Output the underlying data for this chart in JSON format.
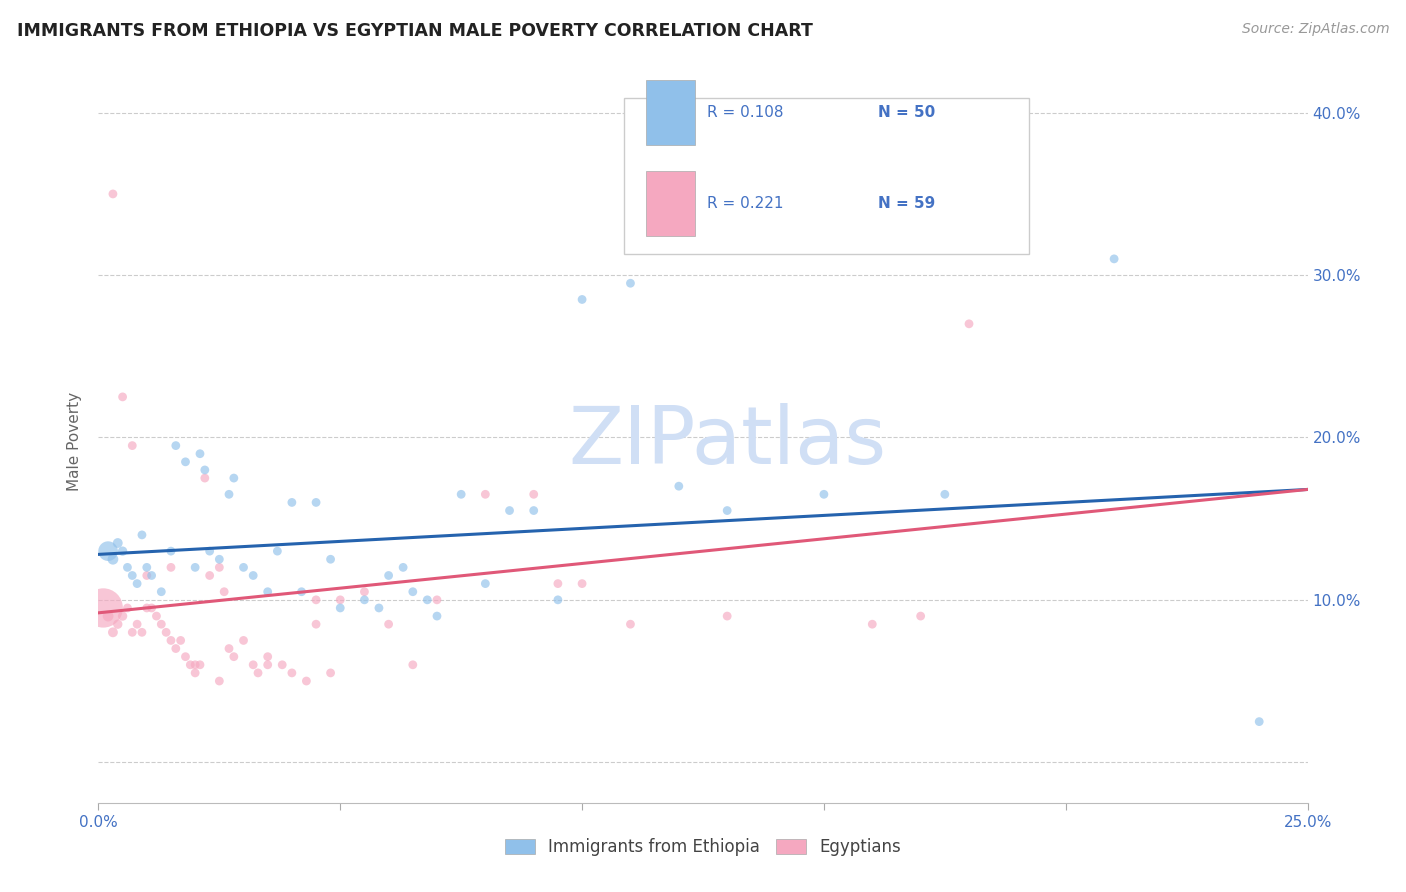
{
  "title": "IMMIGRANTS FROM ETHIOPIA VS EGYPTIAN MALE POVERTY CORRELATION CHART",
  "source": "Source: ZipAtlas.com",
  "ylabel": "Male Poverty",
  "xlim": [
    0.0,
    0.25
  ],
  "ylim": [
    -0.025,
    0.42
  ],
  "yticks": [
    0.0,
    0.1,
    0.2,
    0.3,
    0.4
  ],
  "ytick_labels": [
    "",
    "10.0%",
    "20.0%",
    "30.0%",
    "40.0%"
  ],
  "xticks": [
    0.0,
    0.05,
    0.1,
    0.15,
    0.2,
    0.25
  ],
  "xtick_labels": [
    "0.0%",
    "",
    "",
    "",
    "",
    "25.0%"
  ],
  "blue_color": "#90C0EA",
  "pink_color": "#F5A8C0",
  "line_blue": "#2563AE",
  "line_pink": "#E05878",
  "axis_color": "#4472C4",
  "grid_color": "#CCCCCC",
  "legend_R1": "R = 0.108",
  "legend_N1": "N = 50",
  "legend_R2": "R = 0.221",
  "legend_N2": "N = 59",
  "watermark": "ZIPatlas",
  "watermark_color": "#D0DFF5",
  "blue_scatter_x": [
    0.002,
    0.003,
    0.004,
    0.005,
    0.006,
    0.007,
    0.008,
    0.009,
    0.01,
    0.011,
    0.013,
    0.015,
    0.016,
    0.018,
    0.02,
    0.021,
    0.022,
    0.023,
    0.025,
    0.027,
    0.028,
    0.03,
    0.032,
    0.035,
    0.037,
    0.04,
    0.042,
    0.045,
    0.048,
    0.05,
    0.055,
    0.058,
    0.06,
    0.063,
    0.065,
    0.068,
    0.07,
    0.075,
    0.08,
    0.085,
    0.09,
    0.095,
    0.1,
    0.11,
    0.12,
    0.13,
    0.15,
    0.175,
    0.21,
    0.24
  ],
  "blue_scatter_y": [
    0.13,
    0.125,
    0.135,
    0.13,
    0.12,
    0.115,
    0.11,
    0.14,
    0.12,
    0.115,
    0.105,
    0.13,
    0.195,
    0.185,
    0.12,
    0.19,
    0.18,
    0.13,
    0.125,
    0.165,
    0.175,
    0.12,
    0.115,
    0.105,
    0.13,
    0.16,
    0.105,
    0.16,
    0.125,
    0.095,
    0.1,
    0.095,
    0.115,
    0.12,
    0.105,
    0.1,
    0.09,
    0.165,
    0.11,
    0.155,
    0.155,
    0.1,
    0.285,
    0.295,
    0.17,
    0.155,
    0.165,
    0.165,
    0.31,
    0.025
  ],
  "blue_scatter_s": [
    200,
    60,
    50,
    45,
    40,
    40,
    40,
    40,
    40,
    40,
    40,
    40,
    40,
    40,
    40,
    40,
    40,
    40,
    40,
    40,
    40,
    40,
    40,
    40,
    40,
    40,
    40,
    40,
    40,
    40,
    40,
    40,
    40,
    40,
    40,
    40,
    40,
    40,
    40,
    40,
    40,
    40,
    40,
    40,
    40,
    40,
    40,
    40,
    40,
    40
  ],
  "pink_scatter_x": [
    0.001,
    0.002,
    0.003,
    0.004,
    0.005,
    0.006,
    0.007,
    0.008,
    0.009,
    0.01,
    0.011,
    0.012,
    0.013,
    0.014,
    0.015,
    0.016,
    0.017,
    0.018,
    0.019,
    0.02,
    0.021,
    0.022,
    0.023,
    0.025,
    0.026,
    0.027,
    0.028,
    0.03,
    0.032,
    0.033,
    0.035,
    0.038,
    0.04,
    0.043,
    0.045,
    0.048,
    0.05,
    0.055,
    0.06,
    0.065,
    0.07,
    0.08,
    0.09,
    0.095,
    0.1,
    0.11,
    0.13,
    0.16,
    0.17,
    0.18,
    0.003,
    0.005,
    0.007,
    0.01,
    0.015,
    0.02,
    0.025,
    0.035,
    0.045
  ],
  "pink_scatter_y": [
    0.095,
    0.09,
    0.08,
    0.085,
    0.09,
    0.095,
    0.08,
    0.085,
    0.08,
    0.115,
    0.095,
    0.09,
    0.085,
    0.08,
    0.12,
    0.07,
    0.075,
    0.065,
    0.06,
    0.055,
    0.06,
    0.175,
    0.115,
    0.12,
    0.105,
    0.07,
    0.065,
    0.075,
    0.06,
    0.055,
    0.065,
    0.06,
    0.055,
    0.05,
    0.085,
    0.055,
    0.1,
    0.105,
    0.085,
    0.06,
    0.1,
    0.165,
    0.165,
    0.11,
    0.11,
    0.085,
    0.09,
    0.085,
    0.09,
    0.27,
    0.35,
    0.225,
    0.195,
    0.095,
    0.075,
    0.06,
    0.05,
    0.06,
    0.1
  ],
  "pink_scatter_s": [
    800,
    60,
    50,
    45,
    45,
    40,
    40,
    40,
    40,
    40,
    40,
    40,
    40,
    40,
    40,
    40,
    40,
    40,
    40,
    40,
    40,
    40,
    40,
    40,
    40,
    40,
    40,
    40,
    40,
    40,
    40,
    40,
    40,
    40,
    40,
    40,
    40,
    40,
    40,
    40,
    40,
    40,
    40,
    40,
    40,
    40,
    40,
    40,
    40,
    40,
    40,
    40,
    40,
    40,
    40,
    40,
    40,
    40,
    40
  ],
  "blue_line_x": [
    0.0,
    0.25
  ],
  "blue_line_y": [
    0.128,
    0.168
  ],
  "pink_line_x": [
    0.0,
    0.25
  ],
  "pink_line_y": [
    0.092,
    0.168
  ],
  "legend_label1": "Immigrants from Ethiopia",
  "legend_label2": "Egyptians"
}
